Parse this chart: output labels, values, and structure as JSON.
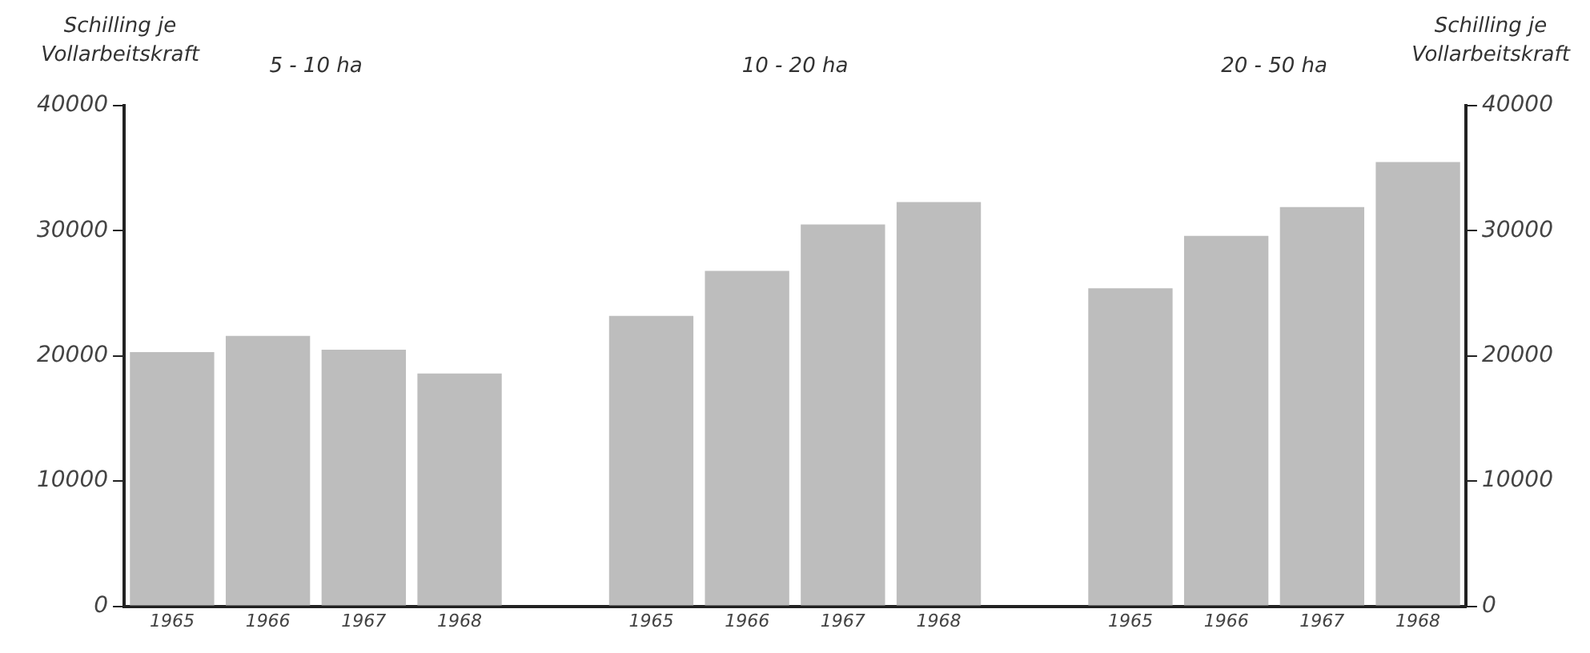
{
  "chart_data": {
    "type": "bar",
    "ylabel": "Schilling je\nVollarbeitskraft",
    "y2label": "Schilling je\nVollarbeitskraft",
    "categories": [
      "1965",
      "1966",
      "1967",
      "1968",
      null,
      "1965",
      "1966",
      "1967",
      "1968",
      null,
      "1965",
      "1966",
      "1967",
      "1968"
    ],
    "values": [
      20300,
      21600,
      20500,
      18600,
      null,
      23200,
      26800,
      30500,
      32300,
      null,
      25400,
      29600,
      31900,
      35500
    ],
    "color": "#bdbdbd",
    "annotations": [
      "5 - 10 ha",
      "10 - 20 ha",
      "20 - 50 ha"
    ],
    "ylim": [
      0,
      40000
    ],
    "yticks": [
      0,
      10000,
      20000,
      30000,
      40000
    ],
    "y2lim": [
      0,
      40000
    ],
    "y2ticks": [
      0,
      10000,
      20000,
      30000,
      40000
    ],
    "grid": false,
    "legend": false
  }
}
